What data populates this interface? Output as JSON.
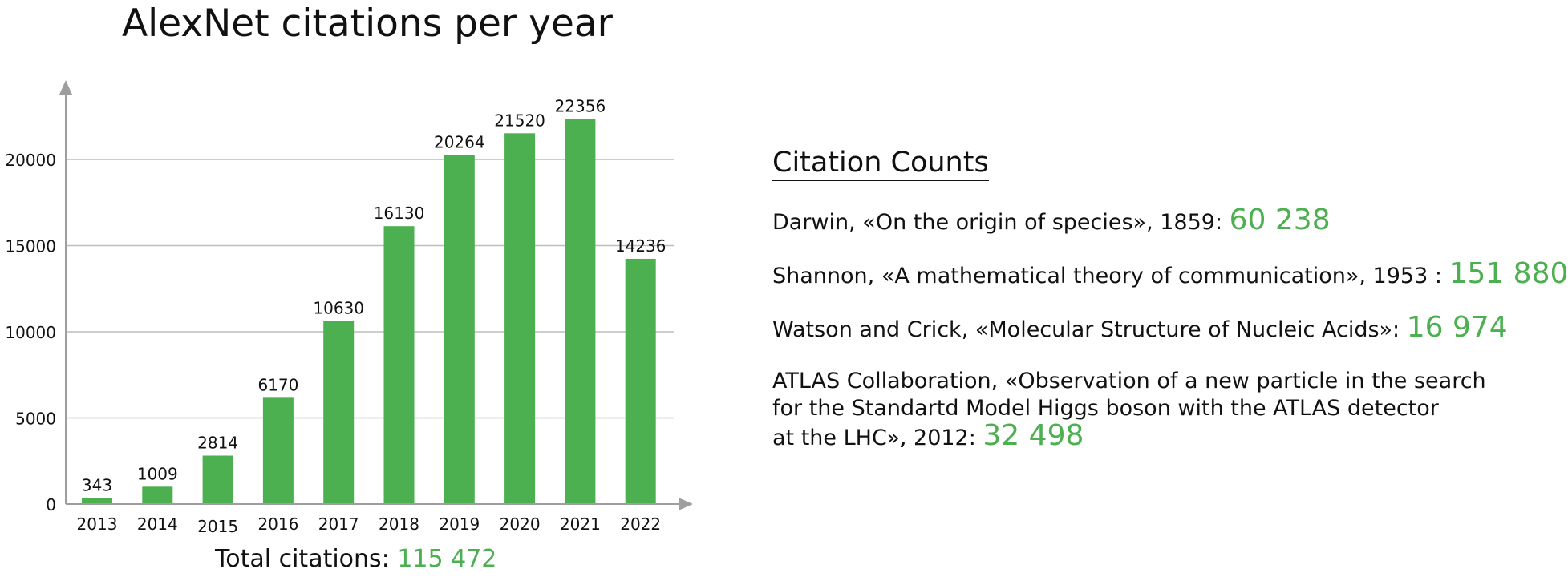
{
  "chart_data": {
    "type": "bar",
    "title": "AlexNet citations per year",
    "categories": [
      "2013",
      "2014",
      "2015",
      "2016",
      "2017",
      "2018",
      "2019",
      "2020",
      "2021",
      "2022"
    ],
    "values": [
      343,
      1009,
      2814,
      6170,
      10630,
      16130,
      20264,
      21520,
      22356,
      14236
    ],
    "data_labels": [
      "343",
      "1009",
      "2814",
      "6170",
      "10630",
      "16130",
      "20264",
      "21520",
      "22356",
      "14236"
    ],
    "yticks": [
      0,
      5000,
      10000,
      15000,
      20000
    ],
    "ytick_labels": [
      "0",
      "5000",
      "10000",
      "15000",
      "20000"
    ],
    "ylim": [
      0,
      24000
    ],
    "xlabel": "",
    "ylabel": "",
    "grid": "horizontal",
    "bar_color": "#4caf50",
    "grid_color": "#bdbdbd",
    "axis_color": "#9e9e9e"
  },
  "total": {
    "label": "Total citations: ",
    "value": "115 472"
  },
  "panel": {
    "heading": "Citation Counts",
    "entries": [
      {
        "text": "Darwin, «On the origin of species», 1859: ",
        "count": "60 238"
      },
      {
        "text": "Shannon, «A mathematical theory of communication», 1953 : ",
        "count": "151 880"
      },
      {
        "text": "Watson and Crick, «Molecular Structure of Nucleic Acids»: ",
        "count": "16 974"
      },
      {
        "line1": "ATLAS Collaboration, «Observation of a new particle in the search",
        "line2": "for the Standartd Model Higgs boson with the ATLAS detector",
        "line3": "at the LHC», 2012: ",
        "count": "32 498"
      }
    ]
  },
  "colors": {
    "accent": "#4caf50",
    "text": "#111111"
  }
}
